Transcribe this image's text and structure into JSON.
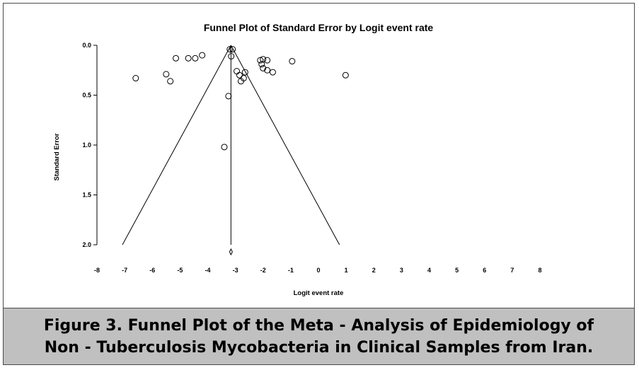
{
  "caption": "Figure 3. Funnel Plot of the Meta - Analysis of Epidemiology of Non - Tuberculosis Mycobacteria in Clinical Samples from Iran.",
  "chart_data": {
    "type": "scatter",
    "title": "Funnel Plot of Standard Error by Logit event rate",
    "xlabel": "Logit event rate",
    "ylabel": "Standard Error",
    "xlim": [
      -8,
      8
    ],
    "ylim": [
      0.0,
      2.0
    ],
    "y_inverted": true,
    "x_ticks": [
      "-8",
      "-7",
      "-6",
      "-5",
      "-4",
      "-3",
      "-2",
      "-1",
      "0",
      "1",
      "2",
      "3",
      "4",
      "5",
      "6",
      "7",
      "8"
    ],
    "y_ticks": [
      "0.0",
      "0.5",
      "1.0",
      "1.5",
      "2.0"
    ],
    "pooled_estimate": -3.16,
    "funnel_lines": "pseudo 95% confidence limits around the pooled estimate",
    "summary_marker": "diamond",
    "points": [
      {
        "x": -6.6,
        "y": 0.33
      },
      {
        "x": -5.5,
        "y": 0.29
      },
      {
        "x": -5.35,
        "y": 0.36
      },
      {
        "x": -5.15,
        "y": 0.13
      },
      {
        "x": -4.7,
        "y": 0.13
      },
      {
        "x": -4.45,
        "y": 0.13
      },
      {
        "x": -4.2,
        "y": 0.1
      },
      {
        "x": -3.2,
        "y": 0.04
      },
      {
        "x": -3.1,
        "y": 0.04
      },
      {
        "x": -3.15,
        "y": 0.11
      },
      {
        "x": -3.25,
        "y": 0.51
      },
      {
        "x": -3.4,
        "y": 1.02
      },
      {
        "x": -2.95,
        "y": 0.26
      },
      {
        "x": -2.85,
        "y": 0.3
      },
      {
        "x": -2.8,
        "y": 0.36
      },
      {
        "x": -2.7,
        "y": 0.33
      },
      {
        "x": -2.65,
        "y": 0.27
      },
      {
        "x": -2.1,
        "y": 0.15
      },
      {
        "x": -2.05,
        "y": 0.19
      },
      {
        "x": -2.0,
        "y": 0.14
      },
      {
        "x": -2.0,
        "y": 0.23
      },
      {
        "x": -1.85,
        "y": 0.25
      },
      {
        "x": -1.85,
        "y": 0.15
      },
      {
        "x": -1.65,
        "y": 0.27
      },
      {
        "x": -0.95,
        "y": 0.16
      },
      {
        "x": 0.98,
        "y": 0.3
      }
    ]
  }
}
